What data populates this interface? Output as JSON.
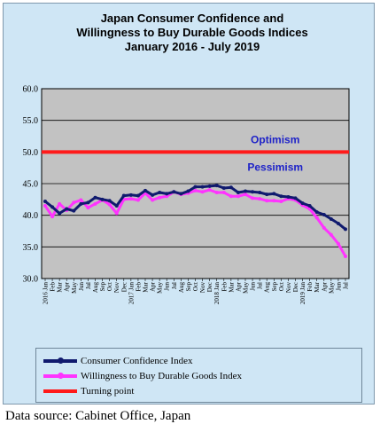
{
  "chart_data": {
    "type": "line",
    "title_lines": [
      "Japan Consumer Confidence and",
      "Willingness to Buy Durable Goods Indices",
      "January 2016 - July 2019"
    ],
    "ylim": [
      30.0,
      60.0
    ],
    "yticks": [
      "60.0",
      "55.0",
      "50.0",
      "45.0",
      "40.0",
      "35.0",
      "30.0"
    ],
    "x_labels": [
      "2016 Jan",
      "Feb",
      "Mar",
      "Apr",
      "May",
      "Jun",
      "Jul",
      "Aug",
      "Sep",
      "Oct",
      "Nov",
      "Dec",
      "2017 Jan",
      "Feb",
      "Mar",
      "Apr",
      "May",
      "Jun",
      "Jul",
      "Aug",
      "Sep",
      "Oct",
      "Nov",
      "Dec",
      "2018 Jan",
      "Feb",
      "Mar",
      "Apr",
      "May",
      "Jun",
      "Jul",
      "Aug",
      "Sep",
      "Oct",
      "Nov",
      "Dec",
      "2019 Jan",
      "Feb",
      "Mar",
      "Apr",
      "May",
      "Jun",
      "Jul"
    ],
    "annotations": {
      "above": "Optimism",
      "below": "Pessimism"
    },
    "series": [
      {
        "name": "Consumer Confidence Index",
        "color": "#101a6e",
        "values": [
          42.2,
          41.3,
          40.3,
          41.0,
          40.7,
          41.8,
          42.0,
          42.8,
          42.5,
          42.3,
          41.5,
          43.1,
          43.2,
          43.1,
          43.9,
          43.2,
          43.6,
          43.4,
          43.7,
          43.4,
          43.8,
          44.5,
          44.5,
          44.6,
          44.7,
          44.3,
          44.4,
          43.6,
          43.8,
          43.7,
          43.6,
          43.3,
          43.4,
          43.0,
          42.9,
          42.7,
          41.9,
          41.5,
          40.5,
          40.1,
          39.4,
          38.7,
          37.8
        ]
      },
      {
        "name": "Willingness to Buy Durable Goods Index",
        "color": "#ff33ff",
        "values": [
          41.5,
          39.8,
          41.8,
          40.8,
          42.0,
          42.4,
          41.2,
          41.8,
          42.4,
          41.7,
          40.3,
          42.5,
          42.6,
          42.4,
          43.5,
          42.4,
          42.8,
          43.0,
          43.7,
          43.3,
          43.5,
          43.9,
          43.7,
          44.0,
          43.6,
          43.6,
          43.0,
          43.0,
          43.3,
          42.7,
          42.6,
          42.3,
          42.3,
          42.2,
          42.6,
          42.4,
          41.6,
          41.0,
          39.6,
          38.0,
          36.9,
          35.5,
          33.5
        ]
      },
      {
        "name": "Turning point",
        "color": "#ff1a1a",
        "values": [
          50.0
        ]
      }
    ],
    "grid": true,
    "legend_position": "bottom"
  },
  "source_text": "Data source: Cabinet Office, Japan"
}
